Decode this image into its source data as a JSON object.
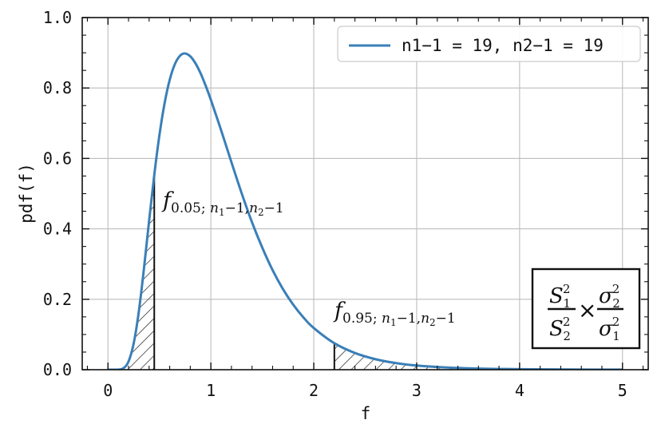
{
  "chart_data": {
    "type": "line",
    "xlabel": "f",
    "ylabel": "pdf(f)",
    "xlim": [
      -0.25,
      5.25
    ],
    "ylim": [
      0.0,
      1.0
    ],
    "x_ticks": [
      0,
      1,
      2,
      3,
      4,
      5
    ],
    "x_tick_labels": [
      "0",
      "1",
      "2",
      "3",
      "4",
      "5"
    ],
    "y_ticks": [
      0.0,
      0.2,
      0.4,
      0.6,
      0.8,
      1.0
    ],
    "y_tick_labels": [
      "0.0",
      "0.2",
      "0.4",
      "0.6",
      "0.8",
      "1.0"
    ],
    "grid": true,
    "legend_position": "top-right",
    "series": [
      {
        "name": "n1−1 = 19, n2−1 = 19",
        "color": "#3a7fb8",
        "x": [
          0.1,
          0.15,
          0.2,
          0.25,
          0.3,
          0.35,
          0.4,
          0.45,
          0.5,
          0.55,
          0.6,
          0.65,
          0.7,
          0.75,
          0.8,
          0.85,
          0.9,
          0.95,
          1.0,
          1.1,
          1.2,
          1.3,
          1.4,
          1.5,
          1.6,
          1.7,
          1.8,
          1.9,
          2.0,
          2.2,
          2.4,
          2.6,
          2.8,
          3.0,
          3.25,
          3.5,
          3.75,
          4.0,
          4.5,
          5.0
        ],
        "y": [
          0.0003,
          0.0041,
          0.0233,
          0.0746,
          0.1652,
          0.2878,
          0.423,
          0.5528,
          0.6657,
          0.7561,
          0.8231,
          0.8675,
          0.8915,
          0.8981,
          0.89,
          0.8703,
          0.8417,
          0.8062,
          0.7664,
          0.6797,
          0.5891,
          0.5004,
          0.4185,
          0.3463,
          0.2827,
          0.2292,
          0.1848,
          0.1482,
          0.1184,
          0.0752,
          0.0475,
          0.0298,
          0.0187,
          0.0118,
          0.0068,
          0.004,
          0.0024,
          0.0015,
          0.0006,
          0.0002
        ]
      }
    ],
    "shaded_regions": [
      {
        "from": 0.0,
        "to": 0.45,
        "pattern": "hatch"
      },
      {
        "from": 2.2,
        "to": 5.0,
        "pattern": "hatch"
      }
    ],
    "annotations": [
      {
        "id": "lower",
        "x": 0.45,
        "main": "f",
        "sub_num": "0.05",
        "sub_sep": "; ",
        "n1": "n",
        "n1sub": "1",
        "mid": "−1,",
        "n2": "n",
        "n2sub": "2",
        "tail": "−1"
      },
      {
        "id": "upper",
        "x": 2.2,
        "main": "f",
        "sub_num": "0.95",
        "sub_sep": "; ",
        "n1": "n",
        "n1sub": "1",
        "mid": "−1,",
        "n2": "n",
        "n2sub": "2",
        "tail": "−1"
      }
    ],
    "formula": {
      "s1": "S",
      "s1sub": "1",
      "s1sup": "2",
      "s2": "S",
      "s2sub": "2",
      "s2sup": "2",
      "times": "×",
      "sig2": "σ",
      "sig2sub": "2",
      "sig2sup": "2",
      "sig1": "σ",
      "sig1sub": "1",
      "sig1sup": "2"
    }
  }
}
